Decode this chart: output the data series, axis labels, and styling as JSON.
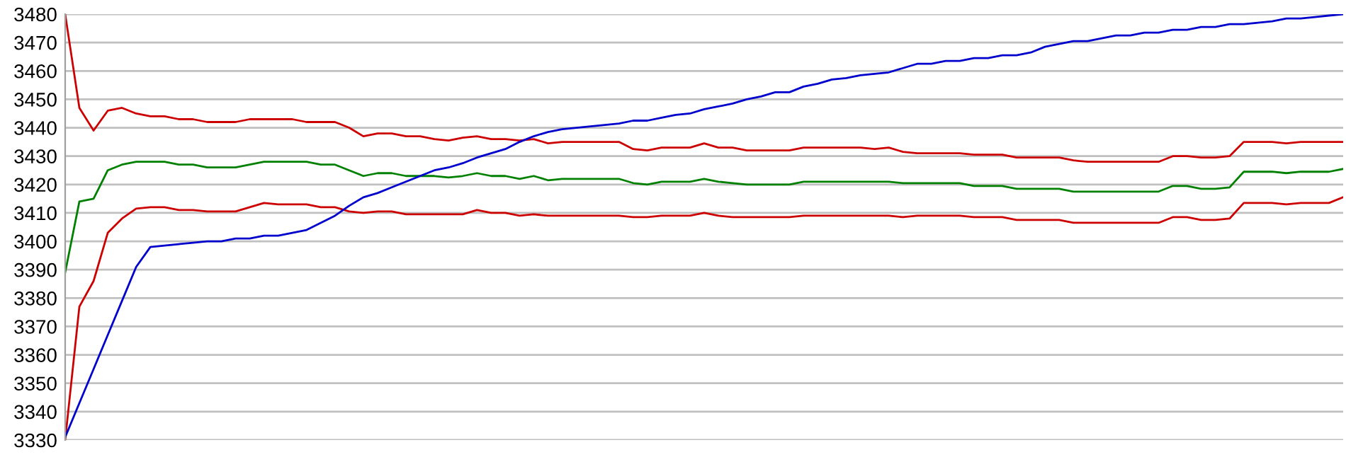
{
  "chart_data": {
    "type": "line",
    "categories": [
      null,
      null,
      null,
      null,
      null,
      null,
      null,
      null,
      null,
      null,
      null,
      null,
      null,
      null,
      null,
      null,
      null,
      null,
      null,
      null,
      null,
      null,
      null,
      null,
      null,
      null,
      null,
      null,
      null,
      null,
      null,
      null,
      null,
      null,
      null,
      null,
      null,
      null,
      null,
      null,
      null,
      null,
      null,
      null,
      null,
      null,
      null,
      null,
      null,
      null,
      null,
      null,
      null,
      null,
      null,
      null,
      null,
      null,
      null,
      null,
      null,
      null,
      null,
      null,
      null,
      null,
      null,
      null,
      null,
      null,
      null,
      null,
      null,
      null,
      null,
      null,
      null,
      null,
      null,
      null,
      null,
      null,
      null,
      null,
      null,
      null,
      null,
      null,
      null,
      null,
      null
    ],
    "series": [
      {
        "color": "#cc0000",
        "values": [
          3480,
          3447,
          3439,
          3446,
          3447,
          3445,
          3444,
          3444,
          3443,
          3443,
          3442,
          3442,
          3442,
          3443,
          3443,
          3443,
          3443,
          3442,
          3442,
          3442,
          3440,
          3437,
          3438,
          3438,
          3437,
          3437,
          3436,
          3435.5,
          3436.5,
          3437,
          3436,
          3436,
          3435.5,
          3436,
          3434.5,
          3435,
          3435,
          3435,
          3435,
          3435,
          3432.5,
          3432,
          3433,
          3433,
          3433,
          3434.5,
          3433,
          3433,
          3432,
          3432,
          3432,
          3432,
          3433,
          3433,
          3433,
          3433,
          3433,
          3432.5,
          3433,
          3431.5,
          3431,
          3431,
          3431,
          3431,
          3430.5,
          3430.5,
          3430.5,
          3429.5,
          3429.5,
          3429.5,
          3429.5,
          3428.5,
          3428,
          3428,
          3428,
          3428,
          3428,
          3428,
          3430,
          3430,
          3429.5,
          3429.5,
          3430,
          3435,
          3435,
          3435,
          3434.5,
          3435,
          3435,
          3435,
          3435
        ]
      },
      {
        "color": "#008000",
        "values": [
          3389,
          3414,
          3415,
          3425,
          3427,
          3428,
          3428,
          3428,
          3427,
          3427,
          3426,
          3426,
          3426,
          3427,
          3428,
          3428,
          3428,
          3428,
          3427,
          3427,
          3425,
          3423,
          3424,
          3424,
          3423,
          3423,
          3423,
          3422.5,
          3423,
          3424,
          3423,
          3423,
          3422,
          3423,
          3421.5,
          3422,
          3422,
          3422,
          3422,
          3422,
          3420.5,
          3420,
          3421,
          3421,
          3421,
          3422,
          3421,
          3420.5,
          3420,
          3420,
          3420,
          3420,
          3421,
          3421,
          3421,
          3421,
          3421,
          3421,
          3421,
          3420.5,
          3420.5,
          3420.5,
          3420.5,
          3420.5,
          3419.5,
          3419.5,
          3419.5,
          3418.5,
          3418.5,
          3418.5,
          3418.5,
          3417.5,
          3417.5,
          3417.5,
          3417.5,
          3417.5,
          3417.5,
          3417.5,
          3419.5,
          3419.5,
          3418.5,
          3418.5,
          3419,
          3424.5,
          3424.5,
          3424.5,
          3424,
          3424.5,
          3424.5,
          3424.5,
          3425.5
        ]
      },
      {
        "color": "#cc0000",
        "values": [
          3330,
          3377,
          3386,
          3403,
          3408,
          3411.5,
          3412,
          3412,
          3411,
          3411,
          3410.5,
          3410.5,
          3410.5,
          3412,
          3413.5,
          3413,
          3413,
          3413,
          3412,
          3412,
          3410.5,
          3410,
          3410.5,
          3410.5,
          3409.5,
          3409.5,
          3409.5,
          3409.5,
          3409.5,
          3411,
          3410,
          3410,
          3409,
          3409.5,
          3409,
          3409,
          3409,
          3409,
          3409,
          3409,
          3408.5,
          3408.5,
          3409,
          3409,
          3409,
          3410,
          3409,
          3408.5,
          3408.5,
          3408.5,
          3408.5,
          3408.5,
          3409,
          3409,
          3409,
          3409,
          3409,
          3409,
          3409,
          3408.5,
          3409,
          3409,
          3409,
          3409,
          3408.5,
          3408.5,
          3408.5,
          3407.5,
          3407.5,
          3407.5,
          3407.5,
          3406.5,
          3406.5,
          3406.5,
          3406.5,
          3406.5,
          3406.5,
          3406.5,
          3408.5,
          3408.5,
          3407.5,
          3407.5,
          3408,
          3413.5,
          3413.5,
          3413.5,
          3413,
          3413.5,
          3413.5,
          3413.5,
          3415.5
        ]
      },
      {
        "color": "#0000cc",
        "values": [
          3331,
          3343,
          3355,
          3367,
          3379,
          3391,
          3398,
          3398.5,
          3399,
          3399.5,
          3400,
          3400,
          3401,
          3401,
          3402,
          3402,
          3403,
          3404,
          3406.5,
          3409,
          3412.5,
          3415.5,
          3417,
          3419,
          3421,
          3423,
          3425,
          3426,
          3427.5,
          3429.5,
          3431,
          3432.5,
          3435,
          3437,
          3438.5,
          3439.5,
          3440,
          3440.5,
          3441,
          3441.5,
          3442.5,
          3442.5,
          3443.5,
          3444.5,
          3445,
          3446.5,
          3447.5,
          3448.5,
          3450,
          3451,
          3452.5,
          3452.5,
          3454.5,
          3455.5,
          3457,
          3457.5,
          3458.5,
          3459,
          3459.5,
          3461,
          3462.5,
          3462.5,
          3463.5,
          3463.5,
          3464.5,
          3464.5,
          3465.5,
          3465.5,
          3466.5,
          3468.5,
          3469.5,
          3470.5,
          3470.5,
          3471.5,
          3472.5,
          3472.5,
          3473.5,
          3473.5,
          3474.5,
          3474.5,
          3475.5,
          3475.5,
          3476.5,
          3476.5,
          3477,
          3477.5,
          3478.5,
          3478.5,
          3479,
          3479.5,
          3480
        ]
      }
    ],
    "ylim": [
      3330,
      3480
    ],
    "yticks": [
      3330,
      3340,
      3350,
      3360,
      3370,
      3380,
      3390,
      3400,
      3410,
      3420,
      3430,
      3440,
      3450,
      3460,
      3470,
      3480
    ],
    "grid": "y",
    "tick_labels": "y",
    "marker": "none",
    "line_style": "solid"
  }
}
